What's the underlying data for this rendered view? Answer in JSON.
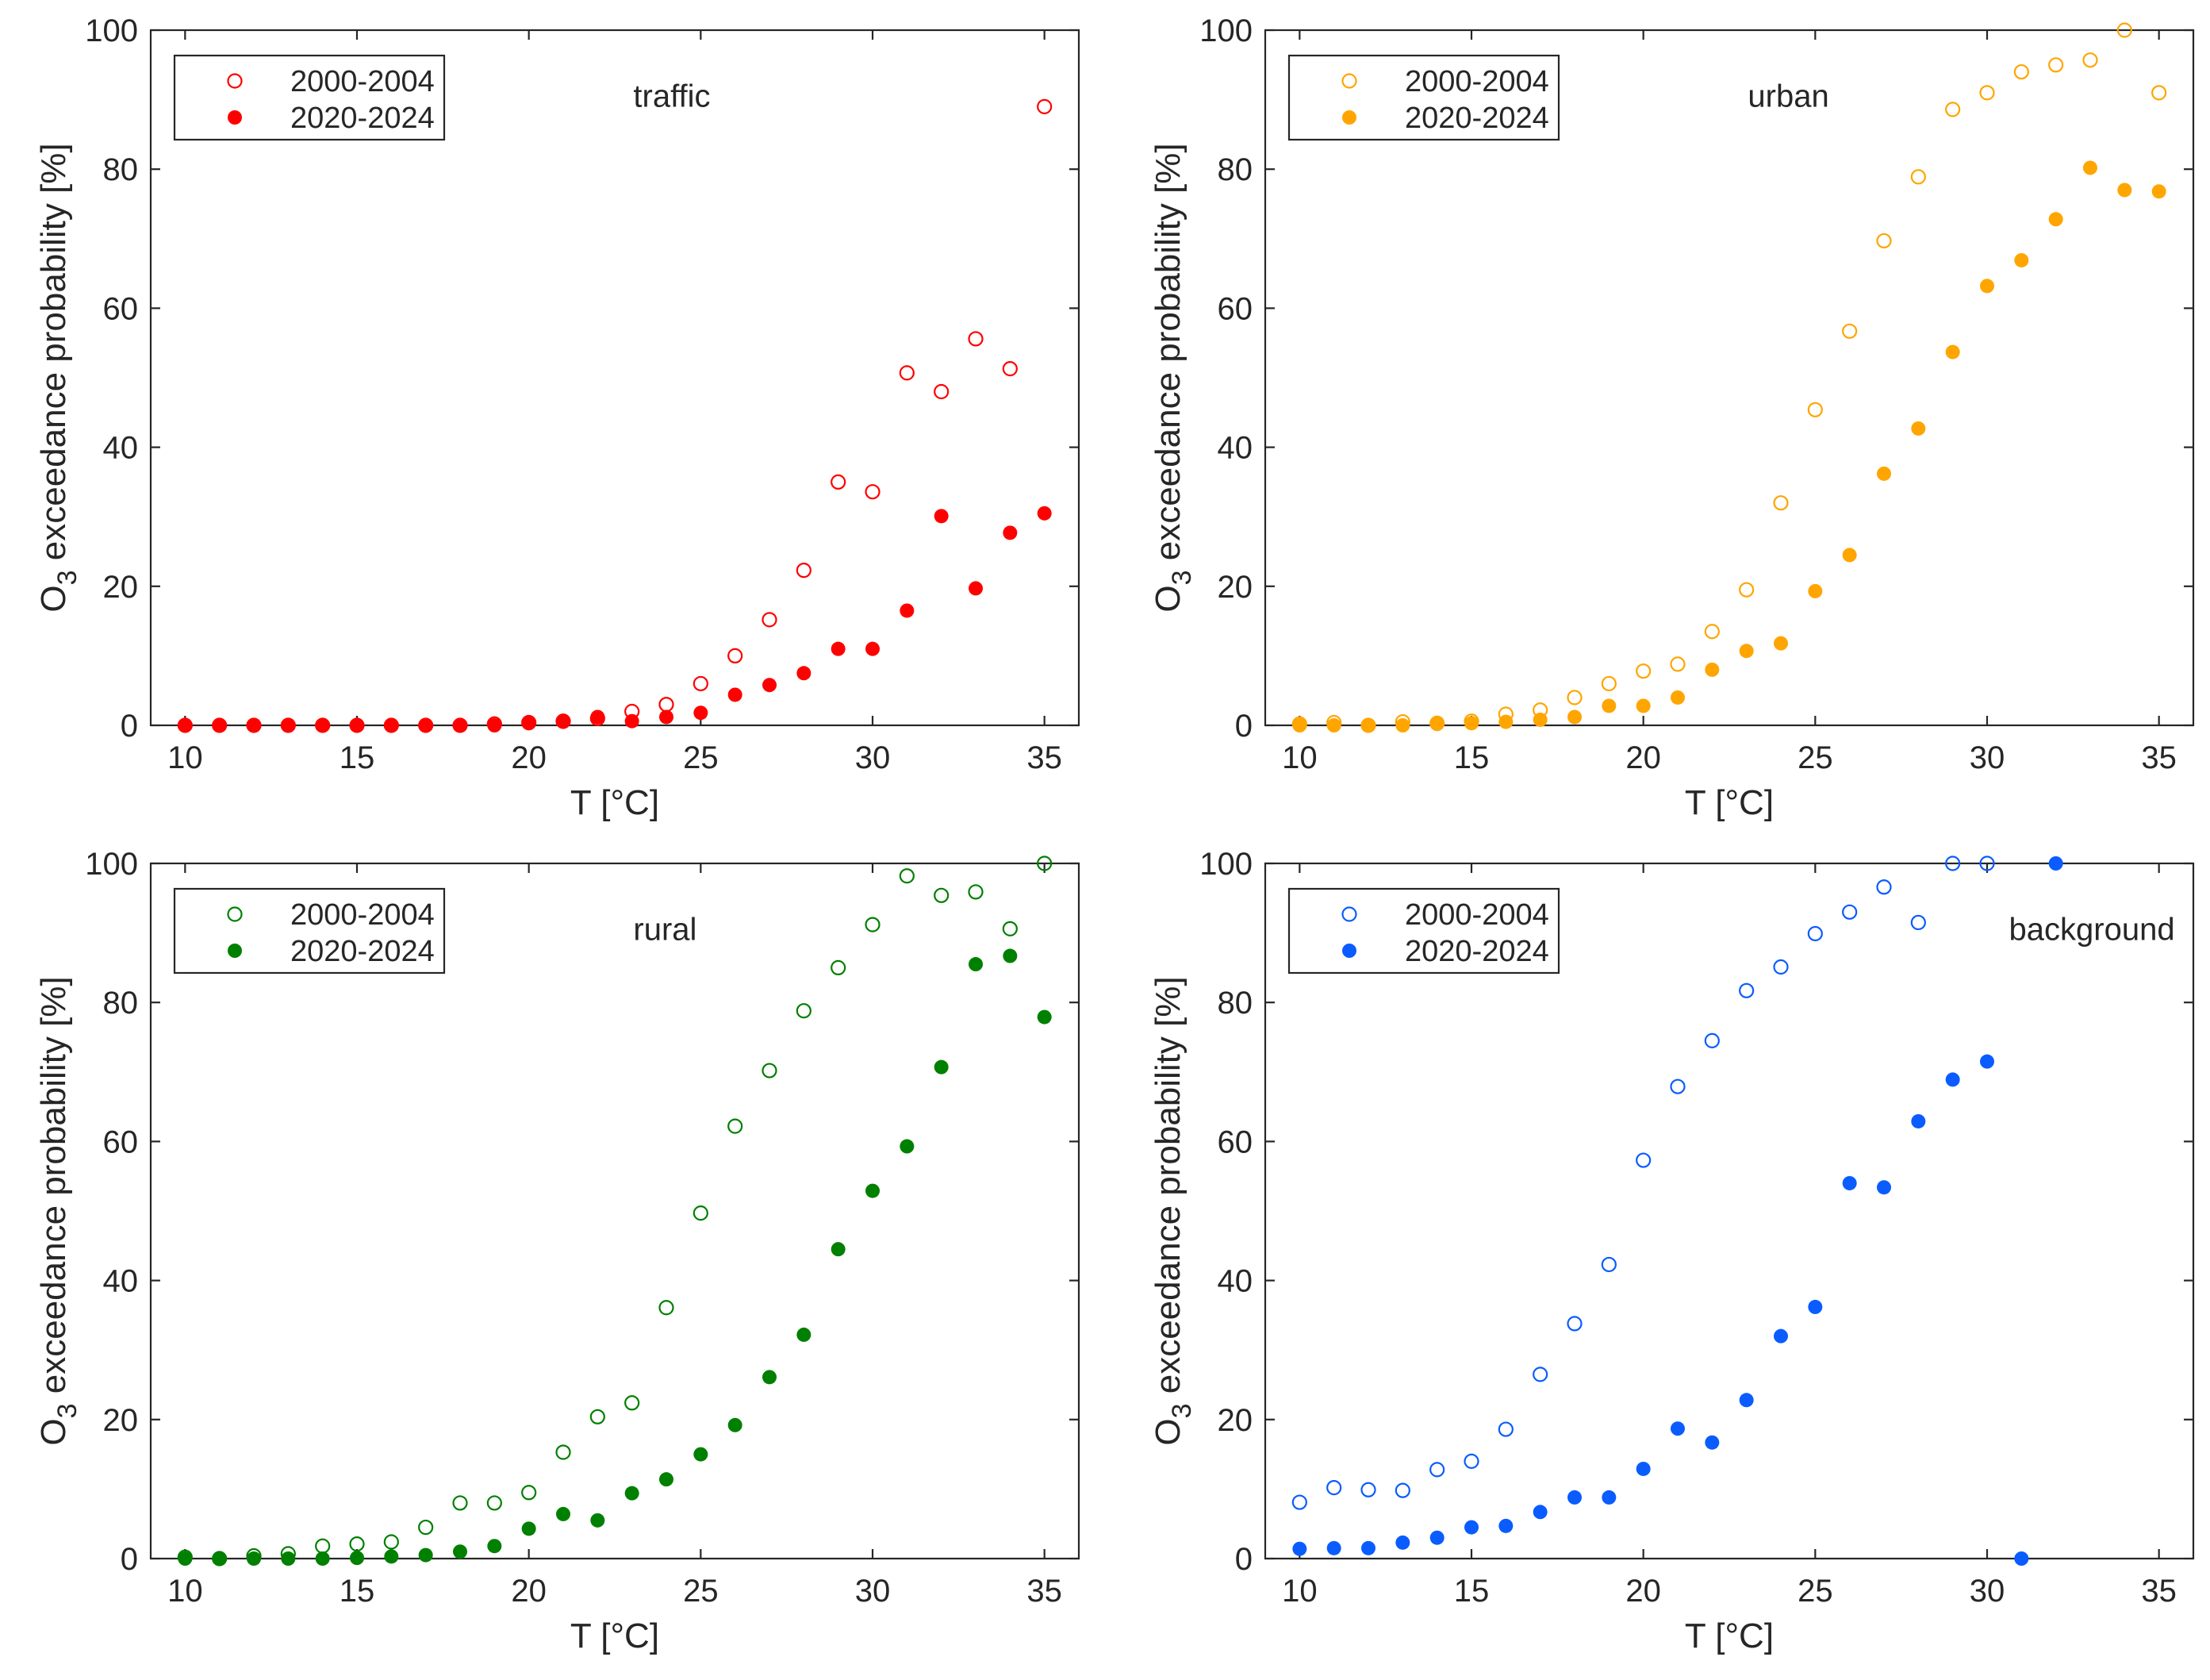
{
  "chart_data": [
    {
      "type": "scatter",
      "panel_label": "traffic",
      "color": "#ff0000",
      "xlabel": "T [°C]",
      "ylabel_main": "O",
      "ylabel_sub": "3",
      "ylabel_rest": " exceedance probability [%]",
      "xlim": [
        9,
        36
      ],
      "ylim": [
        0,
        100
      ],
      "xticks": [
        10,
        15,
        20,
        25,
        30,
        35
      ],
      "yticks": [
        0,
        20,
        40,
        60,
        80,
        100
      ],
      "legend_position": "top-left",
      "x": [
        10,
        11,
        12,
        13,
        14,
        15,
        16,
        17,
        18,
        19,
        20,
        21,
        22,
        23,
        24,
        25,
        26,
        27,
        28,
        29,
        30,
        31,
        32,
        33,
        34,
        35
      ],
      "series": [
        {
          "name": "2000-2004",
          "marker": "open",
          "values": [
            0,
            0,
            0,
            0,
            0,
            0,
            0,
            0,
            0,
            0.2,
            0.4,
            0.6,
            1,
            2,
            3,
            6,
            10,
            15.2,
            22.3,
            35,
            33.6,
            50.7,
            48,
            55.6,
            51.3,
            89
          ]
        },
        {
          "name": "2020-2024",
          "marker": "filled",
          "values": [
            0,
            0,
            0,
            0,
            0,
            0,
            0,
            0,
            0,
            0,
            0.3,
            0.5,
            1.2,
            0.6,
            1.2,
            1.8,
            4.4,
            5.8,
            7.5,
            11,
            11,
            16.5,
            30.1,
            19.7,
            27.7,
            30.5
          ]
        }
      ]
    },
    {
      "type": "scatter",
      "panel_label": "urban",
      "color": "#ffa500",
      "xlabel": "T [°C]",
      "ylabel_main": "O",
      "ylabel_sub": "3",
      "ylabel_rest": " exceedance probability [%]",
      "xlim": [
        9,
        36
      ],
      "ylim": [
        0,
        100
      ],
      "xticks": [
        10,
        15,
        20,
        25,
        30,
        35
      ],
      "yticks": [
        0,
        20,
        40,
        60,
        80,
        100
      ],
      "legend_position": "top-left",
      "x": [
        10,
        11,
        12,
        13,
        14,
        15,
        16,
        17,
        18,
        19,
        20,
        21,
        22,
        23,
        24,
        25,
        26,
        27,
        28,
        29,
        30,
        31,
        32,
        33,
        34,
        35
      ],
      "series": [
        {
          "name": "2000-2004",
          "marker": "open",
          "values": [
            0.2,
            0.4,
            0,
            0.5,
            0.3,
            0.6,
            1.6,
            2.2,
            4,
            6,
            7.8,
            8.8,
            13.5,
            19.5,
            32,
            45.4,
            56.7,
            69.7,
            78.9,
            88.6,
            91,
            94,
            95,
            95.7,
            100,
            91
          ]
        },
        {
          "name": "2020-2024",
          "marker": "filled",
          "values": [
            0,
            0,
            0,
            0,
            0.2,
            0.3,
            0.5,
            0.8,
            1.2,
            2.8,
            2.8,
            4,
            8,
            10.7,
            11.8,
            19.3,
            24.5,
            36.2,
            42.7,
            53.7,
            63.2,
            66.9,
            72.8,
            80.2,
            77,
            76.8
          ]
        }
      ]
    },
    {
      "type": "scatter",
      "panel_label": "rural",
      "color": "#008000",
      "xlabel": "T [°C]",
      "ylabel_main": "O",
      "ylabel_sub": "3",
      "ylabel_rest": " exceedance probability [%]",
      "xlim": [
        9,
        36
      ],
      "ylim": [
        0,
        100
      ],
      "xticks": [
        10,
        15,
        20,
        25,
        30,
        35
      ],
      "yticks": [
        0,
        20,
        40,
        60,
        80,
        100
      ],
      "legend_position": "top-left",
      "x": [
        10,
        11,
        12,
        13,
        14,
        15,
        16,
        17,
        18,
        19,
        20,
        21,
        22,
        23,
        24,
        25,
        26,
        27,
        28,
        29,
        30,
        31,
        32,
        33,
        34,
        35
      ],
      "series": [
        {
          "name": "2000-2004",
          "marker": "open",
          "values": [
            0.2,
            0,
            0.4,
            0.7,
            1.8,
            2.1,
            2.4,
            4.5,
            8,
            8,
            9.5,
            15.3,
            20.4,
            22.4,
            36.1,
            49.7,
            62.2,
            70.2,
            78.8,
            85,
            91.2,
            98.2,
            95.4,
            95.9,
            90.6,
            100
          ]
        },
        {
          "name": "2020-2024",
          "marker": "filled",
          "values": [
            0,
            0,
            0,
            0,
            0,
            0.1,
            0.3,
            0.5,
            1,
            1.8,
            4.3,
            6.4,
            5.5,
            9.4,
            11.4,
            15,
            19.2,
            26.1,
            32.2,
            44.5,
            52.9,
            59.3,
            70.7,
            85.5,
            86.7,
            77.9
          ]
        }
      ]
    },
    {
      "type": "scatter",
      "panel_label": "background",
      "color": "#0a5cff",
      "xlabel": "T [°C]",
      "ylabel_main": "O",
      "ylabel_sub": "3",
      "ylabel_rest": " exceedance probability [%]",
      "xlim": [
        9,
        36
      ],
      "ylim": [
        0,
        100
      ],
      "xticks": [
        10,
        15,
        20,
        25,
        30,
        35
      ],
      "yticks": [
        0,
        20,
        40,
        60,
        80,
        100
      ],
      "legend_position": "top-left",
      "series": [
        {
          "name": "2000-2004",
          "marker": "open",
          "x": [
            10,
            11,
            12,
            13,
            14,
            15,
            16,
            17,
            18,
            19,
            20,
            21,
            22,
            23,
            24,
            25,
            26,
            27,
            28,
            29,
            30
          ],
          "values": [
            8.1,
            10.2,
            9.9,
            9.8,
            12.8,
            14,
            18.6,
            26.5,
            33.8,
            42.3,
            57.3,
            67.9,
            74.5,
            81.7,
            85.1,
            89.9,
            93,
            96.6,
            91.5,
            100,
            100
          ]
        },
        {
          "name": "2020-2024",
          "marker": "filled",
          "x": [
            10,
            11,
            12,
            13,
            14,
            15,
            16,
            17,
            18,
            19,
            20,
            21,
            22,
            23,
            24,
            25,
            26,
            27,
            28,
            29,
            30,
            31,
            32
          ],
          "values": [
            1.4,
            1.5,
            1.5,
            2.3,
            3,
            4.5,
            4.7,
            6.7,
            8.8,
            8.8,
            12.9,
            18.7,
            16.7,
            22.8,
            32,
            36.2,
            54,
            53.4,
            62.9,
            68.9,
            71.5,
            0,
            100
          ]
        }
      ]
    }
  ]
}
